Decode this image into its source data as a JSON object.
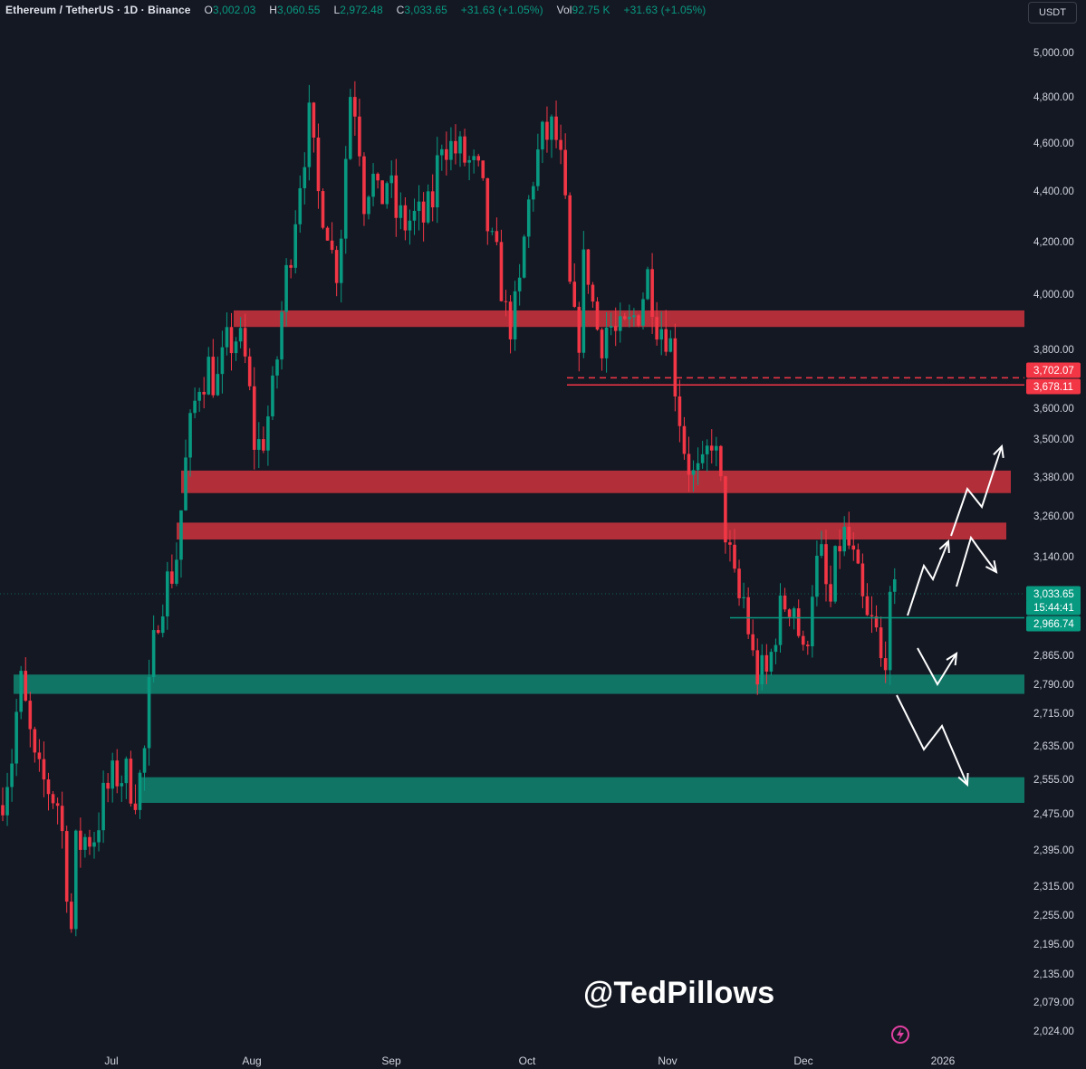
{
  "chart_data": {
    "type": "candlestick",
    "symbol": "Ethereum / TetherUS",
    "interval": "1D",
    "exchange": "Binance",
    "quote_currency": "USDT",
    "ohlc": {
      "open": "3,002.03",
      "high": "3,060.55",
      "low": "2,972.48",
      "close": "3,033.65",
      "change": "+31.63 (+1.05%)"
    },
    "volume": {
      "value": "92.75 K",
      "change": "+31.63 (+1.05%)"
    },
    "price_axis_ticks": [
      5000,
      4800,
      4600,
      4400,
      4200,
      4000,
      3800,
      3600,
      3500,
      3380,
      3260,
      3140,
      2865,
      2790,
      2715,
      2635,
      2555,
      2475,
      2395,
      2315,
      2255,
      2195,
      2135,
      2079,
      2024
    ],
    "time_axis_labels": [
      "Jul",
      "Aug",
      "Sep",
      "Oct",
      "Nov",
      "Dec",
      "2026"
    ],
    "price_labels": [
      {
        "text": "3,702.07",
        "price": 3702.07,
        "color": "#f23645"
      },
      {
        "text": "3,678.11",
        "price": 3678.11,
        "color": "#f23645"
      },
      {
        "text": "3,033.65",
        "price": 3033.65,
        "color": "#089981"
      },
      {
        "text": "15:44:41",
        "price": 3008,
        "color": "#089981"
      },
      {
        "text": "2,966.74",
        "price": 2966.74,
        "color": "#089981"
      }
    ],
    "resistance_zones": [
      {
        "from": 3880,
        "to": 3940
      },
      {
        "from": 3330,
        "to": 3400
      },
      {
        "from": 3190,
        "to": 3240
      }
    ],
    "support_zones": [
      {
        "from": 2765,
        "to": 2815
      },
      {
        "from": 2500,
        "to": 2560
      }
    ],
    "horizontal_lines": [
      {
        "price": 3702.07,
        "style": "dashed",
        "color": "#f23645",
        "start": "Oct"
      },
      {
        "price": 3678.11,
        "style": "solid",
        "color": "#f23645",
        "start": "Oct"
      },
      {
        "price": 2966.74,
        "style": "solid",
        "color": "#089981",
        "start": "Nov"
      }
    ],
    "scenario_arrows": [
      "up to ~3,500",
      "up then down to ~3,140",
      "small bounce from ~2,865",
      "down to ~2,555"
    ],
    "colors": {
      "up": "#089981",
      "down": "#f23645",
      "resistance": "#b22f3a",
      "support": "#117566",
      "background": "#141823"
    }
  },
  "header": {
    "title": "Ethereum / TetherUS · 1D · Binance",
    "o_label": "O",
    "o_value": "3,002.03",
    "h_label": "H",
    "h_value": "3,060.55",
    "l_label": "L",
    "l_value": "2,972.48",
    "c_label": "C",
    "c_value": "3,033.65",
    "change": "+31.63 (+1.05%)",
    "vol_label": "Vol",
    "vol_value": "92.75 K",
    "vol_change": "+31.63 (+1.05%)"
  },
  "currency_button": "USDT",
  "watermark": "@TedPillows",
  "icons": {
    "bottom_right": "lightning-icon"
  }
}
